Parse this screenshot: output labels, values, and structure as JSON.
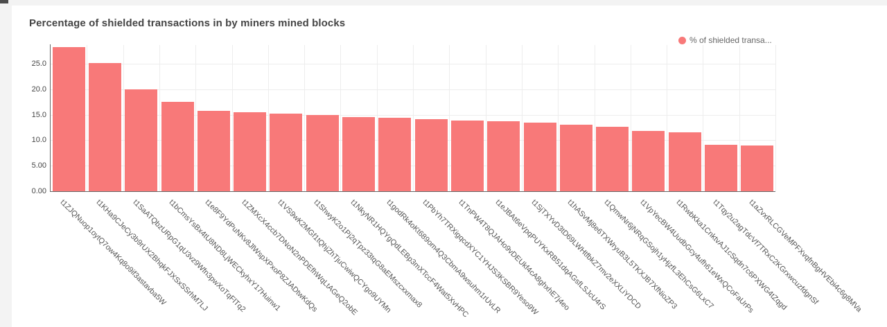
{
  "page": {
    "background_color": "#f3f3f3",
    "card_background_color": "#ffffff"
  },
  "chart_data": {
    "type": "bar",
    "title": "Percentage of shielded transactions in by miners mined blocks",
    "legend": {
      "label": "% of shielded transa...",
      "marker": "circle",
      "position": "top-right"
    },
    "bar_color": "#f87979",
    "grid": true,
    "xlabel": "",
    "ylabel": "",
    "ylim": [
      0,
      28.7
    ],
    "yticks": [
      {
        "value": 0,
        "label": "0.00"
      },
      {
        "value": 5,
        "label": "5.00"
      },
      {
        "value": 10,
        "label": "10.0"
      },
      {
        "value": 15,
        "label": "15.0"
      },
      {
        "value": 20,
        "label": "20.0"
      },
      {
        "value": 25,
        "label": "25.0"
      }
    ],
    "categories": [
      "t1ZJQNuop1oytQ7ow4Kq8o9if3astavba5W",
      "t1KHa9CJeCy3b9rUX2BhqkFJXSxSSrhM7LJ",
      "t1SaATQbzURpG1qU3vz9Wfn3pwXoTqFlTq2",
      "t1bCmsYsBx4tU8ND8LjWECkyhxY17Huinw1",
      "t1e8F9YdPuNKv8JlWspXPxoP8ZJADtwKdQs",
      "t1ZMXcX4ccb7DNoN2nPDEfhWqLtAGeQ2obE",
      "t1VS9wK2MGf1tQhjZhTjuCwiwQCYgo9UYMn",
      "t1ShwyK2o1Pj2qTpz33tqG8aEMszcxxmax8",
      "t1NkyNR1HQYgQdLEBp3mXTccF4Wat5XvHPC",
      "t1godRk4oKt689om4Q3CbmA9wsuhm1rUvLR",
      "t1PbYh7TRXigqcdXYC1YHJS3KSBR9Yeso9W",
      "t1TnPW4T8QJAHo9vDEUkf4cA8ghxhE7j4eo",
      "t1eJBAt6eVpqPUYKxRB51dqAGsfLSJcU4rS",
      "t1SjTXYvD3tD69LWHtfbkZ7mv2eXXLiYDCD",
      "t1hASvMj8e6TXWryuB3L5TKXJB7XfNioZP3",
      "t1QmwNr6jNRqGSojh1yHjzfL3EhCsG6LxC7",
      "t1VpYecBW4UudbGcy4ufh61eWxQCoFaUrPs",
      "t1RwbKka1CnktvAJ1cSqdn7c6PXWG4tZqgd",
      "t1Tqy2u2agTdcVf7TRxC2KGrxwcuzfdgnSf",
      "t1aZvxRLCGVeMPFXvqfnBgHVEbi4c6g8MVa"
    ],
    "values": [
      28.3,
      25.1,
      20.0,
      17.5,
      15.8,
      15.5,
      15.2,
      14.9,
      14.6,
      14.4,
      14.1,
      13.9,
      13.7,
      13.4,
      13.1,
      12.7,
      11.8,
      11.6,
      9.1,
      9.0
    ]
  }
}
